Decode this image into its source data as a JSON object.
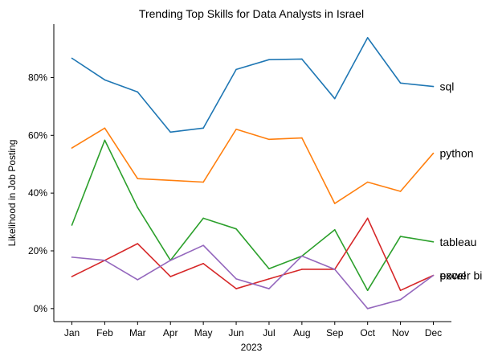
{
  "chart_data": {
    "type": "line",
    "title": "Trending Top Skills for Data Analysts in Israel",
    "xlabel": "2023",
    "ylabel": "Likelihood in Job Posting",
    "categories": [
      "Jan",
      "Feb",
      "Mar",
      "Apr",
      "May",
      "Jun",
      "Jul",
      "Aug",
      "Sep",
      "Oct",
      "Nov",
      "Dec"
    ],
    "ylim": [
      -4.5,
      98.5
    ],
    "yticks": [
      0,
      20,
      40,
      60,
      80
    ],
    "ytick_format": "{v}%",
    "grid": false,
    "legend": "none",
    "series_labels_at_end": true,
    "series": [
      {
        "name": "sql",
        "color": "#1f77b4",
        "values": [
          86.7,
          79.2,
          75.0,
          61.1,
          62.5,
          82.8,
          86.2,
          86.4,
          72.7,
          93.8,
          78.1,
          76.9
        ]
      },
      {
        "name": "python",
        "color": "#ff7f0e",
        "values": [
          55.6,
          62.5,
          45.0,
          44.4,
          43.8,
          62.1,
          58.6,
          59.1,
          36.4,
          43.8,
          40.6,
          53.8
        ]
      },
      {
        "name": "tableau",
        "color": "#2ca02c",
        "values": [
          28.9,
          58.3,
          35.0,
          16.7,
          31.3,
          27.6,
          13.8,
          18.2,
          27.3,
          6.3,
          25.0,
          23.1
        ]
      },
      {
        "name": "excel",
        "color": "#d62728",
        "values": [
          11.1,
          16.7,
          22.5,
          11.1,
          15.6,
          6.9,
          10.3,
          13.6,
          13.6,
          31.3,
          6.3,
          11.5
        ]
      },
      {
        "name": "power bi",
        "color": "#9467bd",
        "values": [
          17.8,
          16.7,
          10.0,
          16.7,
          21.9,
          10.3,
          6.9,
          18.2,
          13.6,
          0.0,
          3.1,
          11.5
        ]
      }
    ]
  }
}
